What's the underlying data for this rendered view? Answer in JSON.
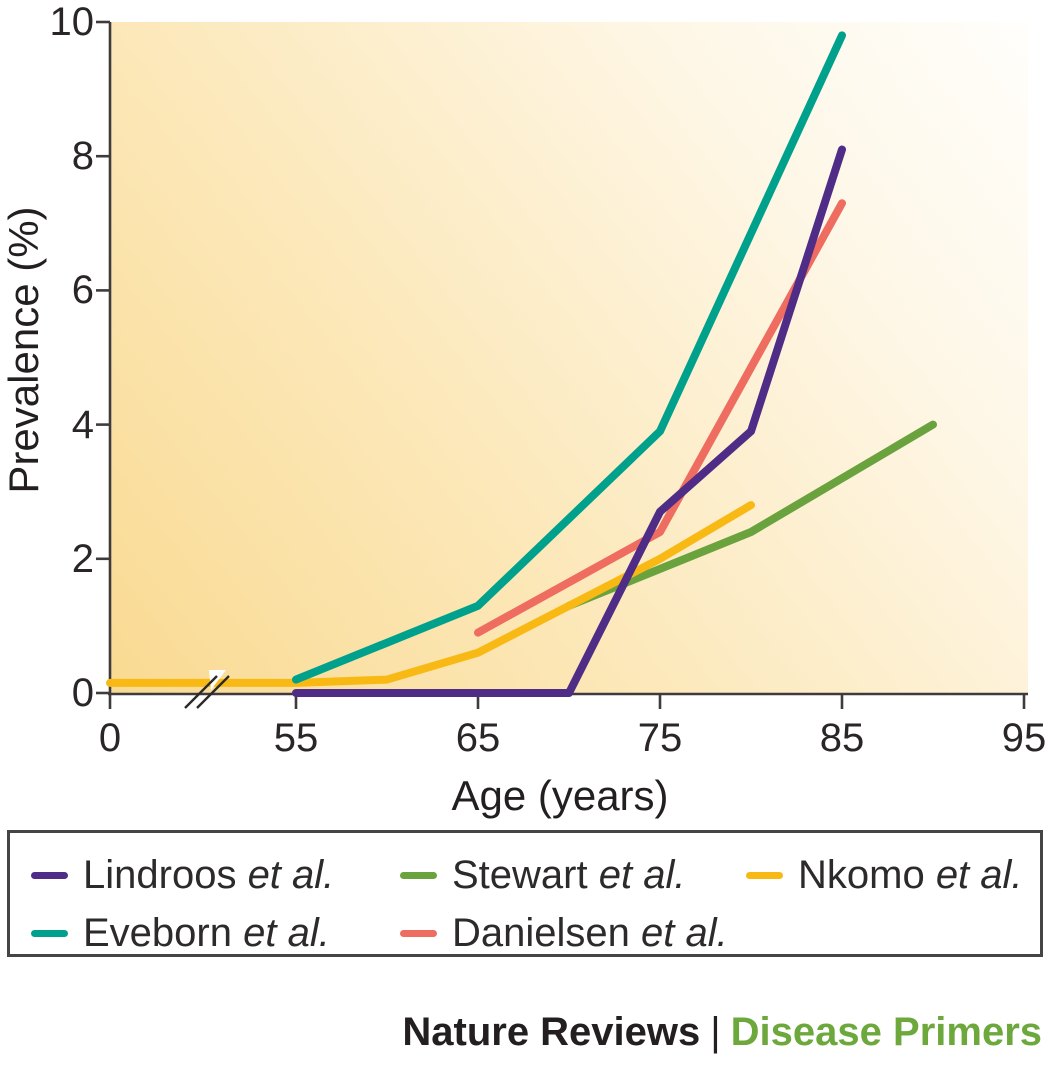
{
  "chart_data": {
    "type": "line",
    "title": "",
    "xlabel": "Age (years)",
    "ylabel": "Prevalence (%)",
    "x_ticks": [
      0,
      55,
      65,
      75,
      85,
      95
    ],
    "x_tick_labels": [
      "0",
      "55",
      "65",
      "75",
      "85",
      "95"
    ],
    "y_ticks": [
      0,
      2,
      4,
      6,
      8,
      10
    ],
    "y_tick_labels": [
      "0",
      "2",
      "4",
      "6",
      "8",
      "10"
    ],
    "ylim": [
      0,
      10
    ],
    "grid": false,
    "axis_break": {
      "present": true,
      "between": [
        0,
        55
      ]
    },
    "legend_position": "bottom",
    "series": [
      {
        "name": "Lindroos et al.",
        "color": "#4f2d87",
        "points": [
          [
            55,
            0
          ],
          [
            70,
            0
          ],
          [
            75,
            2.7
          ],
          [
            80,
            3.9
          ],
          [
            85,
            8.1
          ]
        ]
      },
      {
        "name": "Eveborn et al.",
        "color": "#00a18c",
        "points": [
          [
            55,
            0.2
          ],
          [
            65,
            1.3
          ],
          [
            75,
            3.9
          ],
          [
            85,
            9.8
          ]
        ]
      },
      {
        "name": "Stewart et al.",
        "color": "#6aa23e",
        "points": [
          [
            70,
            1.3
          ],
          [
            80,
            2.4
          ],
          [
            90,
            4.0
          ]
        ]
      },
      {
        "name": "Danielsen et al.",
        "color": "#ee6d60",
        "points": [
          [
            65,
            0.9
          ],
          [
            75,
            2.4
          ],
          [
            85,
            7.3
          ]
        ]
      },
      {
        "name": "Nkomo et al.",
        "color": "#f9b915",
        "points": [
          [
            0,
            0.15
          ],
          [
            55,
            0.15
          ],
          [
            60,
            0.2
          ],
          [
            65,
            0.6
          ],
          [
            70,
            1.3
          ],
          [
            75,
            2.0
          ],
          [
            80,
            2.8
          ]
        ]
      }
    ],
    "draw_order": [
      2,
      4,
      1,
      3,
      0
    ]
  },
  "legend": {
    "items": [
      {
        "label_main": "Lindroos",
        "label_suffix": "et al.",
        "color": "#4f2d87",
        "row": 0,
        "col": 0
      },
      {
        "label_main": "Stewart",
        "label_suffix": "et al.",
        "color": "#6aa23e",
        "row": 0,
        "col": 1
      },
      {
        "label_main": "Nkomo",
        "label_suffix": "et al.",
        "color": "#f9b915",
        "row": 0,
        "col": 2
      },
      {
        "label_main": "Eveborn",
        "label_suffix": "et al.",
        "color": "#00a18c",
        "row": 1,
        "col": 0
      },
      {
        "label_main": "Danielsen",
        "label_suffix": "et al.",
        "color": "#ee6d60",
        "row": 1,
        "col": 1
      }
    ]
  },
  "footer": {
    "brand": "Nature Reviews",
    "separator": "|",
    "journal": "Disease Primers",
    "journal_color": "#6da83c"
  }
}
